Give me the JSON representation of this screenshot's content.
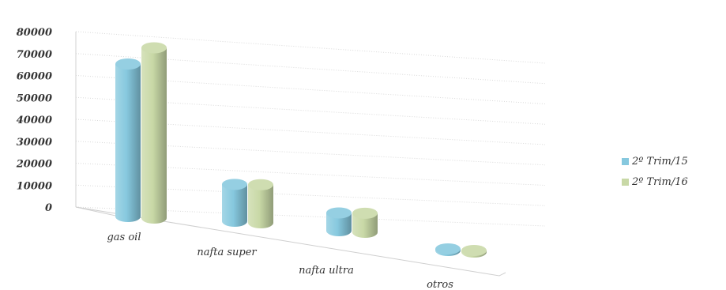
{
  "chart_data": {
    "type": "bar",
    "style": "3d-cylinder",
    "categories": [
      "gas oil",
      "nafta super",
      "nafta ultra",
      "otros"
    ],
    "series": [
      {
        "name": "2º Trim/15",
        "values": [
          60000,
          14500,
          7000,
          500
        ],
        "color": "#86c8de"
      },
      {
        "name": "2º Trim/16",
        "values": [
          67000,
          15000,
          7500,
          500
        ],
        "color": "#c8d8a6"
      }
    ],
    "yticks": [
      0,
      10000,
      20000,
      30000,
      40000,
      50000,
      60000,
      70000,
      80000
    ],
    "ylim": [
      0,
      80000
    ],
    "grid": true,
    "legend_position": "right",
    "title": "",
    "xlabel": "",
    "ylabel": ""
  }
}
